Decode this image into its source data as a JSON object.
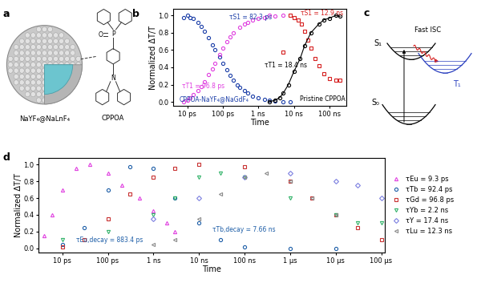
{
  "chart_data": [
    {
      "type": "scatter",
      "panel_label": "b",
      "x_label": "Time",
      "y_label": "Normalized ΔT/T",
      "log": "x",
      "xlim": [
        4,
        300000
      ],
      "ylim": [
        -0.05,
        1.08
      ],
      "xticks": [
        {
          "value": 10,
          "label": "10 ps"
        },
        {
          "value": 100,
          "label": "100 ps"
        },
        {
          "value": 1000,
          "label": "1 ns"
        },
        {
          "value": 10000,
          "label": "10 ns"
        },
        {
          "value": 100000,
          "label": "100 ns"
        }
      ],
      "yticks": [
        {
          "value": 0,
          "label": "0.0"
        },
        {
          "value": 0.2,
          "label": "0.2"
        },
        {
          "value": 0.4,
          "label": "0.4"
        },
        {
          "value": 0.6,
          "label": "0.6"
        },
        {
          "value": 0.8,
          "label": "0.8"
        },
        {
          "value": 1,
          "label": "1.0"
        }
      ],
      "annotations": [
        "τS1 = 82.3 ps",
        "τT1 = 96.8 ps",
        "τS1 = 12.9 ns",
        "τT1 = 18.4 ns",
        "CPPOA-NaYF₄@NaGdF₄",
        "Pristine CPPOA"
      ],
      "series": [
        {
          "color": "#1c3fa8",
          "marker": "circle",
          "line_style": "none",
          "x": [
            8,
            10,
            12,
            15,
            20,
            25,
            30,
            40,
            50,
            60,
            80,
            100,
            130,
            160,
            200,
            250,
            300,
            400,
            500,
            700,
            1000,
            1500,
            2000,
            3000,
            5000,
            8000
          ],
          "values": [
            0.98,
            1.0,
            0.98,
            0.97,
            0.92,
            0.87,
            0.82,
            0.74,
            0.66,
            0.6,
            0.52,
            0.45,
            0.37,
            0.31,
            0.25,
            0.2,
            0.17,
            0.13,
            0.1,
            0.07,
            0.05,
            0.03,
            0.02,
            0.01,
            0.0,
            0.0
          ]
        },
        {
          "color": "#e040e0",
          "marker": "circle",
          "line_style": "none",
          "x": [
            8,
            10,
            12,
            15,
            20,
            25,
            30,
            40,
            50,
            60,
            80,
            100,
            130,
            160,
            200,
            300,
            400,
            500,
            700,
            1000,
            1500,
            2000,
            3000,
            5000
          ],
          "values": [
            0.0,
            0.02,
            0.05,
            0.08,
            0.13,
            0.18,
            0.23,
            0.32,
            0.38,
            0.45,
            0.55,
            0.62,
            0.7,
            0.75,
            0.8,
            0.86,
            0.9,
            0.92,
            0.95,
            0.97,
            0.98,
            1.0,
            0.99,
            1.0
          ]
        },
        {
          "color": "#d62020",
          "marker": "square",
          "line_style": "none",
          "x": [
            5000,
            8000,
            10000,
            13000,
            16000,
            20000,
            25000,
            30000,
            40000,
            50000,
            70000,
            100000,
            150000,
            200000
          ],
          "values": [
            0.58,
            1.0,
            0.98,
            0.95,
            0.9,
            0.82,
            0.72,
            0.62,
            0.5,
            0.42,
            0.33,
            0.27,
            0.25,
            0.25
          ]
        },
        {
          "color": "#000000",
          "marker": "circle",
          "line_style": "solid",
          "x": [
            2000,
            3000,
            4000,
            5000,
            7000,
            10000,
            15000,
            20000,
            30000,
            50000,
            70000,
            100000,
            150000,
            200000
          ],
          "values": [
            0.0,
            0.02,
            0.05,
            0.1,
            0.2,
            0.35,
            0.5,
            0.65,
            0.8,
            0.9,
            0.95,
            0.97,
            1.0,
            0.99
          ]
        }
      ]
    },
    {
      "type": "scatter",
      "panel_label": "d",
      "x_label": "Time",
      "y_label": "Normalized ΔT/T",
      "log": "x",
      "xlim": [
        3,
        120000000
      ],
      "ylim": [
        -0.05,
        1.08
      ],
      "legend": "right",
      "xticks": [
        {
          "value": 10,
          "label": "10 ps"
        },
        {
          "value": 100,
          "label": "100 ps"
        },
        {
          "value": 1000,
          "label": "1 ns"
        },
        {
          "value": 10000,
          "label": "10 ns"
        },
        {
          "value": 100000,
          "label": "100 ns"
        },
        {
          "value": 1000000,
          "label": "1 μs"
        },
        {
          "value": 10000000,
          "label": "10 μs"
        },
        {
          "value": 100000000,
          "label": "100 μs"
        }
      ],
      "yticks": [
        {
          "value": 0,
          "label": "0.0"
        },
        {
          "value": 0.2,
          "label": "0.2"
        },
        {
          "value": 0.4,
          "label": "0.4"
        },
        {
          "value": 0.6,
          "label": "0.6"
        },
        {
          "value": 0.8,
          "label": "0.8"
        },
        {
          "value": 1,
          "label": "1.0"
        }
      ],
      "annotations": [
        "τEu,decay = 883.4 ps",
        "τTb,decay = 7.66 ns"
      ],
      "series": [
        {
          "name": "τEu = 9.3 ps",
          "color": "#e040e0",
          "marker": "triangle_up",
          "line_style": "none",
          "x": [
            4,
            6,
            10,
            20,
            40,
            100,
            200,
            500,
            1000,
            2000,
            3000
          ],
          "values": [
            0.15,
            0.4,
            0.7,
            0.95,
            1.0,
            0.9,
            0.75,
            0.6,
            0.45,
            0.3,
            0.2
          ]
        },
        {
          "name": "τTb = 92.4 ps",
          "color": "#1f5fa8",
          "marker": "circle",
          "line_style": "none",
          "x": [
            10,
            30,
            100,
            300,
            1000,
            3000,
            10000,
            30000,
            100000,
            1000000,
            10000000
          ],
          "values": [
            0.05,
            0.25,
            0.7,
            0.97,
            0.95,
            0.6,
            0.3,
            0.1,
            0.02,
            0.0,
            0.0
          ]
        },
        {
          "name": "τGd = 96.8 ps",
          "color": "#c83232",
          "marker": "square",
          "line_style": "none",
          "x": [
            10,
            30,
            100,
            300,
            1000,
            3000,
            10000,
            100000,
            1000000,
            3000000,
            10000000,
            30000000,
            100000000
          ],
          "values": [
            0.02,
            0.1,
            0.35,
            0.65,
            0.85,
            0.95,
            1.0,
            0.97,
            0.8,
            0.6,
            0.4,
            0.25,
            0.1
          ]
        },
        {
          "name": "τYb = 2.2 ns",
          "color": "#33b36a",
          "marker": "triangle_down",
          "line_style": "none",
          "x": [
            10,
            100,
            1000,
            3000,
            10000,
            30000,
            100000,
            1000000,
            10000000,
            30000000,
            100000000
          ],
          "values": [
            0.1,
            0.2,
            0.4,
            0.6,
            0.85,
            0.9,
            0.85,
            0.6,
            0.4,
            0.3,
            0.3
          ]
        },
        {
          "name": "τY = 17.4 ns",
          "color": "#7b7fe0",
          "marker": "diamond",
          "line_style": "none",
          "x": [
            1000,
            10000,
            100000,
            1000000,
            10000000,
            30000000,
            100000000
          ],
          "values": [
            0.35,
            0.6,
            0.85,
            0.9,
            0.8,
            0.75,
            0.6
          ]
        },
        {
          "name": "τLu = 12.3 ns",
          "color": "#8a8a8a",
          "marker": "triangle_left",
          "line_style": "none",
          "x": [
            1000,
            3000,
            10000,
            30000,
            100000,
            300000,
            1000000,
            3000000,
            10000000
          ],
          "values": [
            0.05,
            0.1,
            0.35,
            0.65,
            0.85,
            0.9,
            0.8,
            0.6,
            0.4
          ]
        }
      ]
    }
  ],
  "diagrams": {
    "a": {
      "panel_label": "a",
      "particle": "NaYF₄@NaLnF₄",
      "molecule": "CPPOA",
      "atom_labels": [
        "O",
        "P",
        "N"
      ]
    },
    "c": {
      "panel_label": "c",
      "states": [
        "S₁",
        "T₁",
        "S₀"
      ],
      "transition": "Fast ISC"
    }
  }
}
